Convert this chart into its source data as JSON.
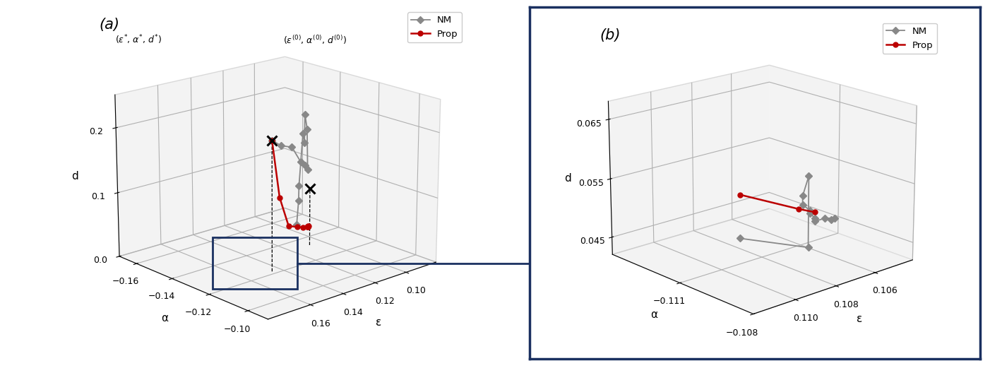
{
  "panel_a": {
    "nm_trajectory": {
      "epsilon": [
        0.145,
        0.137,
        0.128,
        0.12,
        0.115,
        0.112,
        0.11,
        0.109,
        0.108,
        0.109,
        0.109,
        0.108,
        0.108
      ],
      "alpha": [
        -0.122,
        -0.124,
        -0.126,
        -0.128,
        -0.13,
        -0.131,
        -0.133,
        -0.135,
        -0.136,
        -0.136,
        -0.138,
        -0.139,
        -0.14
      ],
      "d": [
        0.2,
        0.185,
        0.175,
        0.145,
        0.135,
        0.125,
        0.185,
        0.205,
        0.16,
        0.175,
        0.09,
        0.065,
        0.025
      ]
    },
    "prop_trajectory": {
      "epsilon": [
        0.145,
        0.138,
        0.13,
        0.122,
        0.116,
        0.112,
        0.11,
        0.109,
        0.109,
        0.109,
        0.109,
        0.109
      ],
      "alpha": [
        -0.122,
        -0.124,
        -0.126,
        -0.128,
        -0.13,
        -0.131,
        -0.132,
        -0.133,
        -0.133,
        -0.133,
        -0.133,
        -0.133
      ],
      "d": [
        0.2,
        0.107,
        0.055,
        0.045,
        0.038,
        0.035,
        0.033,
        0.031,
        0.03,
        0.03,
        0.03,
        0.03
      ]
    },
    "start_point": {
      "epsilon": 0.145,
      "alpha": -0.122,
      "d": 0.2
    },
    "end_point_star": {
      "epsilon": 0.108,
      "alpha": -0.133,
      "d": 0.09
    },
    "xlim": [
      0.08,
      0.185
    ],
    "ylim": [
      -0.17,
      -0.09
    ],
    "zlim": [
      0.0,
      0.25
    ],
    "xticks": [
      0.1,
      0.12,
      0.14,
      0.16
    ],
    "yticks": [
      -0.16,
      -0.14,
      -0.12,
      -0.1
    ],
    "zticks": [
      0.0,
      0.1,
      0.2
    ],
    "xlabel": "ε",
    "ylabel": "α",
    "zlabel": "d",
    "elev": 18,
    "azim": 48
  },
  "panel_b": {
    "nm_trajectory": {
      "epsilon": [
        0.1085,
        0.1075,
        0.1075,
        0.1078,
        0.1078,
        0.1078,
        0.1078,
        0.1078,
        0.1078,
        0.1073,
        0.1068,
        0.107
      ],
      "alpha": [
        -0.1115,
        -0.1095,
        -0.1095,
        -0.1095,
        -0.1095,
        -0.1092,
        -0.1092,
        -0.109,
        -0.109,
        -0.109,
        -0.109,
        -0.109
      ],
      "d": [
        0.045,
        0.0455,
        0.0575,
        0.0545,
        0.053,
        0.0525,
        0.052,
        0.0515,
        0.051,
        0.051,
        0.0505,
        0.0505
      ]
    },
    "prop_trajectory": {
      "epsilon": [
        0.1085,
        0.108,
        0.1078
      ],
      "alpha": [
        -0.1115,
        -0.1095,
        -0.109
      ],
      "d": [
        0.0525,
        0.0525,
        0.0525
      ]
    },
    "xlim": [
      0.104,
      0.112
    ],
    "ylim": [
      -0.114,
      -0.108
    ],
    "zlim": [
      0.042,
      0.068
    ],
    "xticks": [
      0.106,
      0.108,
      0.11
    ],
    "yticks": [
      -0.111,
      -0.108
    ],
    "zticks": [
      0.045,
      0.055,
      0.065
    ],
    "xlabel": "ε",
    "ylabel": "α",
    "zlabel": "d",
    "elev": 18,
    "azim": 48
  },
  "nm_color": "#888888",
  "prop_color": "#bb0000",
  "background_color": "#f0f0f0",
  "border_color": "#1a3060",
  "annotation_fontsize": 9,
  "label_fontsize": 11,
  "tick_fontsize": 9
}
